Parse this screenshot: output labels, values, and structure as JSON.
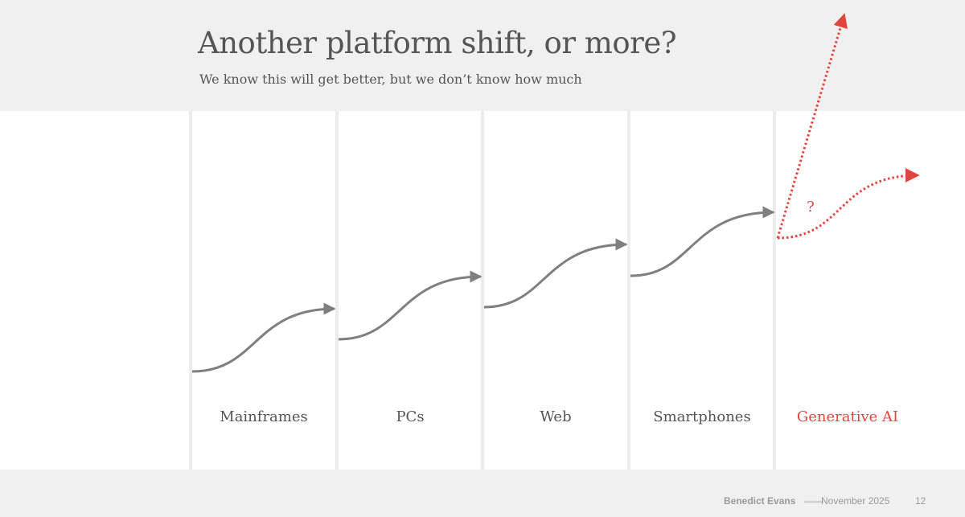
{
  "slide": {
    "title": "Another platform shift, or more?",
    "subtitle": "We know this will get better, but we don’t know how much"
  },
  "platforms": [
    {
      "label": "Mainframes"
    },
    {
      "label": "PCs"
    },
    {
      "label": "Web"
    },
    {
      "label": "Smartphones"
    },
    {
      "label": "Generative AI"
    }
  ],
  "annotation": {
    "question_mark": "?"
  },
  "footer": {
    "author": "Benedict Evans",
    "separator": "——",
    "date": "November 2025",
    "page_number": "12"
  },
  "colors": {
    "accent": "#e0463f",
    "curve": "#7f7f7f",
    "text": "#555555",
    "band": "#f0f0f0"
  }
}
